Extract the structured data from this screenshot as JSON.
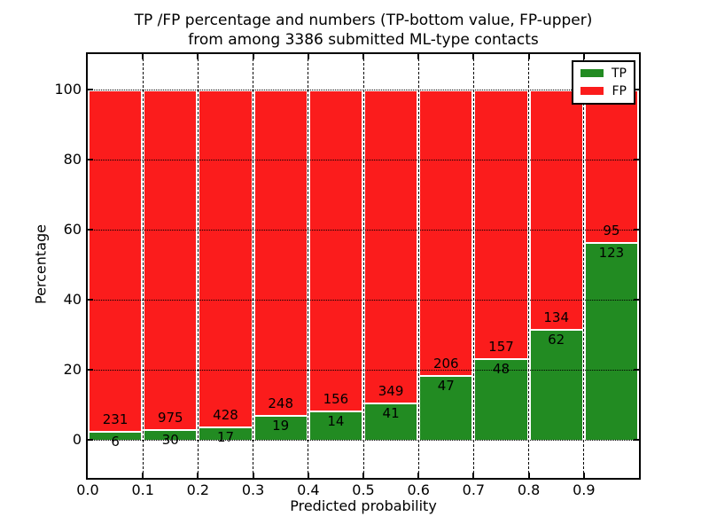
{
  "title": {
    "line1": "TP /FP percentage and numbers (TP-bottom value, FP-upper)",
    "line2": "from among 3386 submitted ML-type contacts"
  },
  "axes": {
    "xlabel": "Predicted probability",
    "ylabel": "Percentage",
    "xtick_labels": [
      "0.0",
      "0.1",
      "0.2",
      "0.3",
      "0.4",
      "0.5",
      "0.6",
      "0.7",
      "0.8",
      "0.9"
    ],
    "ytick_labels": [
      "0",
      "20",
      "40",
      "60",
      "80",
      "100"
    ]
  },
  "legend": {
    "position": "upper-right",
    "items": [
      {
        "label": "TP",
        "color": "#228b22"
      },
      {
        "label": "FP",
        "color": "#fb1c1c"
      }
    ]
  },
  "chart_data": {
    "type": "bar",
    "stacked": true,
    "normalized": "each bin stacked to 100%; green height = 100*TP/(TP+FP)",
    "title": "TP /FP percentage and numbers (TP-bottom value, FP-upper) from among 3386 submitted ML-type contacts",
    "xlabel": "Predicted probability",
    "ylabel": "Percentage",
    "total_contacts": 3386,
    "bin_edges": [
      0.0,
      0.1,
      0.2,
      0.3,
      0.4,
      0.5,
      0.6,
      0.7,
      0.8,
      0.9,
      1.0
    ],
    "series": [
      {
        "name": "TP",
        "color": "#228b22",
        "counts": [
          6,
          30,
          17,
          19,
          14,
          41,
          47,
          48,
          62,
          123
        ]
      },
      {
        "name": "FP",
        "color": "#fb1c1c",
        "counts": [
          231,
          975,
          428,
          248,
          156,
          349,
          206,
          157,
          134,
          95
        ]
      }
    ],
    "bar_labels": "FP count above green top, TP count below green top",
    "xticks": [
      0.0,
      0.1,
      0.2,
      0.3,
      0.4,
      0.5,
      0.6,
      0.7,
      0.8,
      0.9
    ],
    "yticks": [
      0,
      20,
      40,
      60,
      80,
      100
    ],
    "xlim": [
      0.0,
      1.0
    ],
    "ylim": [
      -11,
      110
    ],
    "grid": "dotted black, horizontal over bars, vertical in white gaps between bars",
    "bar_edge_color": "#ffffff",
    "legend_position": "upper right"
  }
}
